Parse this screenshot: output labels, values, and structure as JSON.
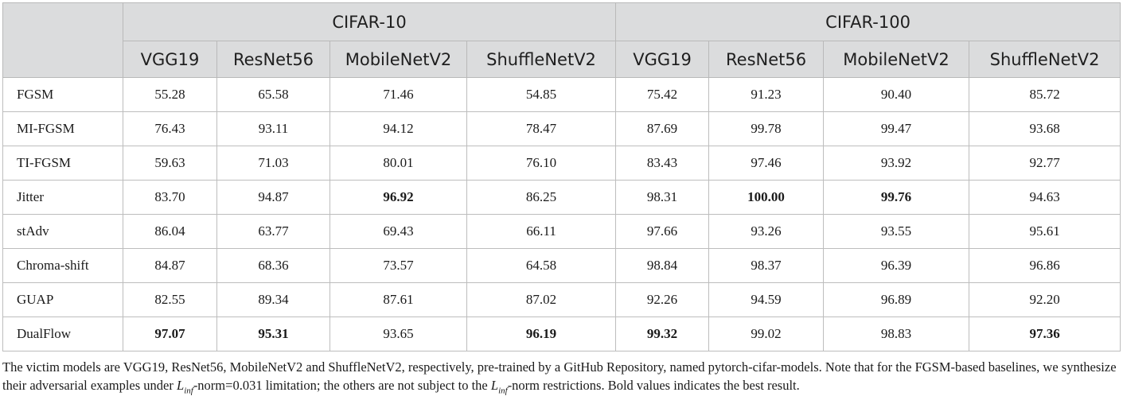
{
  "table": {
    "groups": [
      "CIFAR-10",
      "CIFAR-100"
    ],
    "models": [
      "VGG19",
      "ResNet56",
      "MobileNetV2",
      "ShuffleNetV2",
      "VGG19",
      "ResNet56",
      "MobileNetV2",
      "ShuffleNetV2"
    ],
    "rows": [
      {
        "method": "FGSM",
        "values": [
          "55.28",
          "65.58",
          "71.46",
          "54.85",
          "75.42",
          "91.23",
          "90.40",
          "85.72"
        ],
        "bold": []
      },
      {
        "method": "MI-FGSM",
        "values": [
          "76.43",
          "93.11",
          "94.12",
          "78.47",
          "87.69",
          "99.78",
          "99.47",
          "93.68"
        ],
        "bold": []
      },
      {
        "method": "TI-FGSM",
        "values": [
          "59.63",
          "71.03",
          "80.01",
          "76.10",
          "83.43",
          "97.46",
          "93.92",
          "92.77"
        ],
        "bold": []
      },
      {
        "method": "Jitter",
        "values": [
          "83.70",
          "94.87",
          "96.92",
          "86.25",
          "98.31",
          "100.00",
          "99.76",
          "94.63"
        ],
        "bold": [
          2,
          5,
          6
        ]
      },
      {
        "method": "stAdv",
        "values": [
          "86.04",
          "63.77",
          "69.43",
          "66.11",
          "97.66",
          "93.26",
          "93.55",
          "95.61"
        ],
        "bold": []
      },
      {
        "method": "Chroma-shift",
        "values": [
          "84.87",
          "68.36",
          "73.57",
          "64.58",
          "98.84",
          "98.37",
          "96.39",
          "96.86"
        ],
        "bold": []
      },
      {
        "method": "GUAP",
        "values": [
          "82.55",
          "89.34",
          "87.61",
          "87.02",
          "92.26",
          "94.59",
          "96.89",
          "92.20"
        ],
        "bold": []
      },
      {
        "method": "DualFlow",
        "values": [
          "97.07",
          "95.31",
          "93.65",
          "96.19",
          "99.32",
          "99.02",
          "98.83",
          "97.36"
        ],
        "bold": [
          0,
          1,
          3,
          4,
          7
        ]
      }
    ]
  },
  "footnote": {
    "part1": "The victim models are VGG19, ResNet56, MobileNetV2 and ShuffleNetV2, respectively, pre-trained by a GitHub Repository, named pytorch-cifar-models. Note that for the FGSM-based baselines, we synthesize their adversarial examples under ",
    "norm_symbol": "L",
    "norm_sub": "inf",
    "part2": "-norm=0.031 limitation; the others are not subject to the ",
    "part3": "-norm restrictions. Bold values indicates the best result."
  }
}
